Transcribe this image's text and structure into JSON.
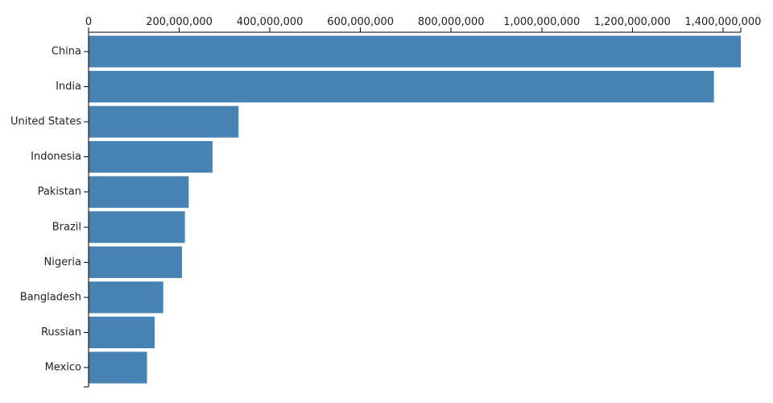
{
  "chart_data": {
    "type": "bar",
    "orientation": "horizontal",
    "title": "",
    "xlabel": "",
    "ylabel": "",
    "categories": [
      "China",
      "India",
      "United States",
      "Indonesia",
      "Pakistan",
      "Brazil",
      "Nigeria",
      "Bangladesh",
      "Russian",
      "Mexico"
    ],
    "values": [
      1439323776,
      1380004385,
      331002651,
      273523615,
      220892340,
      212559417,
      206139589,
      164689383,
      145934462,
      128932753
    ],
    "xlim": [
      0,
      1439323776
    ],
    "x_ticks": [
      0,
      200000000,
      400000000,
      600000000,
      800000000,
      1000000000,
      1200000000,
      1400000000
    ],
    "x_tick_labels": [
      "0",
      "200,000,000",
      "400,000,000",
      "600,000,000",
      "800,000,000",
      "1,000,000,000",
      "1,200,000,000",
      "1,400,000,000"
    ],
    "x_axis_position": "top",
    "grid": false,
    "legend": "none",
    "bar_color": "#4682b4"
  }
}
